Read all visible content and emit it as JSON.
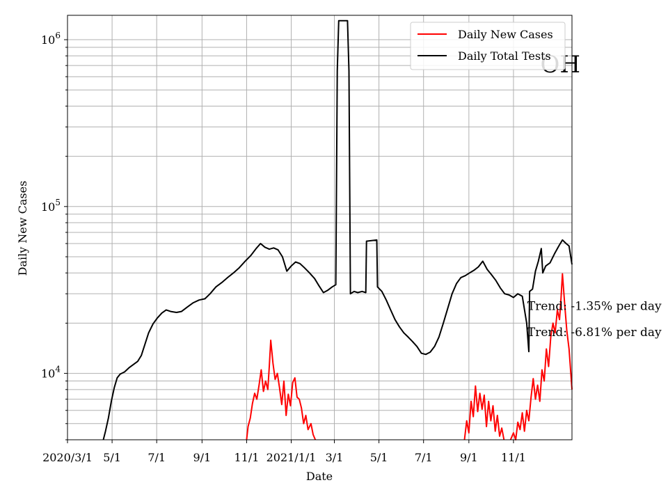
{
  "chart_data": {
    "type": "line",
    "title": "",
    "state_label": "OH",
    "xlabel": "Date",
    "ylabel": "Daily New Cases",
    "yscale": "log",
    "ylim": [
      4000,
      1400000
    ],
    "xlim": [
      "2020-03-01",
      "2022-01-20"
    ],
    "grid": true,
    "legend_position": "top-right",
    "x_ticks": [
      {
        "date": "2020-03-01",
        "label": "2020/3/1"
      },
      {
        "date": "2020-05-01",
        "label": "5/1"
      },
      {
        "date": "2020-07-01",
        "label": "7/1"
      },
      {
        "date": "2020-09-01",
        "label": "9/1"
      },
      {
        "date": "2020-11-01",
        "label": "11/1"
      },
      {
        "date": "2021-01-01",
        "label": "2021/1/1"
      },
      {
        "date": "2021-03-01",
        "label": "3/1"
      },
      {
        "date": "2021-05-01",
        "label": "5/1"
      },
      {
        "date": "2021-07-01",
        "label": "7/1"
      },
      {
        "date": "2021-09-01",
        "label": "9/1"
      },
      {
        "date": "2021-11-01",
        "label": "11/1"
      }
    ],
    "y_ticks": [
      {
        "value": 10000,
        "base": "10",
        "exp": "4"
      },
      {
        "value": 100000,
        "base": "10",
        "exp": "5"
      },
      {
        "value": 1000000,
        "base": "10",
        "exp": "6"
      }
    ],
    "annotations": [
      {
        "text": "Trend: -1.35% per day",
        "date": "2021-11-20",
        "value": 24000
      },
      {
        "text": "Trend: -6.81% per day",
        "date": "2021-11-20",
        "value": 16700
      }
    ],
    "series": [
      {
        "name": "Daily Total Tests",
        "color": "#000000",
        "points": [
          [
            "2020-04-19",
            4000
          ],
          [
            "2020-04-22",
            4500
          ],
          [
            "2020-04-26",
            5400
          ],
          [
            "2020-04-30",
            6800
          ],
          [
            "2020-05-04",
            8200
          ],
          [
            "2020-05-08",
            9400
          ],
          [
            "2020-05-12",
            9900
          ],
          [
            "2020-05-18",
            10200
          ],
          [
            "2020-05-24",
            10800
          ],
          [
            "2020-05-30",
            11300
          ],
          [
            "2020-06-05",
            11800
          ],
          [
            "2020-06-10",
            12800
          ],
          [
            "2020-06-15",
            15000
          ],
          [
            "2020-06-20",
            17500
          ],
          [
            "2020-06-26",
            19800
          ],
          [
            "2020-07-02",
            21500
          ],
          [
            "2020-07-08",
            23000
          ],
          [
            "2020-07-14",
            24000
          ],
          [
            "2020-07-20",
            23500
          ],
          [
            "2020-07-28",
            23200
          ],
          [
            "2020-08-04",
            23500
          ],
          [
            "2020-08-12",
            25000
          ],
          [
            "2020-08-20",
            26500
          ],
          [
            "2020-08-28",
            27500
          ],
          [
            "2020-09-05",
            28000
          ],
          [
            "2020-09-12",
            30000
          ],
          [
            "2020-09-20",
            33000
          ],
          [
            "2020-09-28",
            35000
          ],
          [
            "2020-10-06",
            37500
          ],
          [
            "2020-10-14",
            40000
          ],
          [
            "2020-10-22",
            43000
          ],
          [
            "2020-10-30",
            47000
          ],
          [
            "2020-11-07",
            51000
          ],
          [
            "2020-11-14",
            56000
          ],
          [
            "2020-11-20",
            60000
          ],
          [
            "2020-11-26",
            57000
          ],
          [
            "2020-12-02",
            55500
          ],
          [
            "2020-12-08",
            56500
          ],
          [
            "2020-12-14",
            55000
          ],
          [
            "2020-12-20",
            50000
          ],
          [
            "2020-12-26",
            41000
          ],
          [
            "2021-01-01",
            44000
          ],
          [
            "2021-01-07",
            46500
          ],
          [
            "2021-01-13",
            45500
          ],
          [
            "2021-01-19",
            43000
          ],
          [
            "2021-01-26",
            40000
          ],
          [
            "2021-02-02",
            37000
          ],
          [
            "2021-02-08",
            33500
          ],
          [
            "2021-02-14",
            30500
          ],
          [
            "2021-02-20",
            31500
          ],
          [
            "2021-02-26",
            33000
          ],
          [
            "2021-03-03",
            34000
          ],
          [
            "2021-03-05",
            650000
          ],
          [
            "2021-03-07",
            1300000
          ],
          [
            "2021-03-19",
            1300000
          ],
          [
            "2021-03-21",
            650000
          ],
          [
            "2021-03-23",
            30000
          ],
          [
            "2021-03-28",
            31000
          ],
          [
            "2021-04-02",
            30500
          ],
          [
            "2021-04-08",
            31000
          ],
          [
            "2021-04-13",
            30500
          ],
          [
            "2021-04-14",
            62000
          ],
          [
            "2021-04-28",
            63000
          ],
          [
            "2021-04-29",
            33000
          ],
          [
            "2021-05-05",
            31000
          ],
          [
            "2021-05-11",
            27500
          ],
          [
            "2021-05-17",
            24000
          ],
          [
            "2021-05-23",
            21000
          ],
          [
            "2021-05-29",
            19000
          ],
          [
            "2021-06-04",
            17500
          ],
          [
            "2021-06-10",
            16500
          ],
          [
            "2021-06-16",
            15500
          ],
          [
            "2021-06-22",
            14500
          ],
          [
            "2021-06-28",
            13200
          ],
          [
            "2021-07-04",
            13000
          ],
          [
            "2021-07-10",
            13400
          ],
          [
            "2021-07-16",
            14500
          ],
          [
            "2021-07-22",
            16500
          ],
          [
            "2021-07-28",
            20000
          ],
          [
            "2021-08-03",
            24500
          ],
          [
            "2021-08-09",
            30000
          ],
          [
            "2021-08-15",
            34500
          ],
          [
            "2021-08-21",
            37500
          ],
          [
            "2021-08-27",
            38500
          ],
          [
            "2021-09-02",
            40000
          ],
          [
            "2021-09-08",
            41500
          ],
          [
            "2021-09-14",
            43500
          ],
          [
            "2021-09-20",
            47000
          ],
          [
            "2021-09-26",
            42000
          ],
          [
            "2021-10-02",
            39000
          ],
          [
            "2021-10-08",
            36000
          ],
          [
            "2021-10-14",
            32500
          ],
          [
            "2021-10-20",
            30000
          ],
          [
            "2021-10-26",
            29500
          ],
          [
            "2021-11-01",
            28500
          ],
          [
            "2021-11-07",
            30000
          ],
          [
            "2021-11-13",
            29000
          ],
          [
            "2021-11-19",
            20000
          ],
          [
            "2021-11-22",
            13500
          ],
          [
            "2021-11-23",
            31000
          ],
          [
            "2021-11-27",
            32000
          ],
          [
            "2021-12-01",
            41000
          ],
          [
            "2021-12-05",
            47000
          ],
          [
            "2021-12-09",
            56000
          ],
          [
            "2021-12-11",
            40000
          ],
          [
            "2021-12-15",
            44000
          ],
          [
            "2021-12-21",
            46000
          ],
          [
            "2021-12-27",
            52000
          ],
          [
            "2022-01-02",
            58000
          ],
          [
            "2022-01-07",
            63000
          ],
          [
            "2022-01-12",
            60000
          ],
          [
            "2022-01-16",
            58000
          ],
          [
            "2022-01-20",
            45000
          ]
        ]
      },
      {
        "name": "Daily New Cases",
        "color": "#ff0000",
        "points": [
          [
            "2020-11-01",
            4000
          ],
          [
            "2020-11-03",
            4800
          ],
          [
            "2020-11-06",
            5400
          ],
          [
            "2020-11-09",
            6600
          ],
          [
            "2020-11-12",
            7600
          ],
          [
            "2020-11-15",
            7000
          ],
          [
            "2020-11-18",
            8500
          ],
          [
            "2020-11-21",
            10500
          ],
          [
            "2020-11-24",
            7800
          ],
          [
            "2020-11-27",
            9000
          ],
          [
            "2020-11-30",
            8000
          ],
          [
            "2020-12-02",
            11000
          ],
          [
            "2020-12-04",
            15800
          ],
          [
            "2020-12-07",
            11500
          ],
          [
            "2020-12-10",
            9200
          ],
          [
            "2020-12-13",
            10000
          ],
          [
            "2020-12-16",
            8200
          ],
          [
            "2020-12-19",
            6500
          ],
          [
            "2020-12-22",
            9000
          ],
          [
            "2020-12-25",
            5600
          ],
          [
            "2020-12-28",
            7500
          ],
          [
            "2020-12-31",
            6400
          ],
          [
            "2021-01-03",
            8800
          ],
          [
            "2021-01-06",
            9400
          ],
          [
            "2021-01-09",
            7200
          ],
          [
            "2021-01-12",
            7000
          ],
          [
            "2021-01-15",
            6200
          ],
          [
            "2021-01-18",
            5000
          ],
          [
            "2021-01-21",
            5600
          ],
          [
            "2021-01-24",
            4600
          ],
          [
            "2021-01-28",
            5000
          ],
          [
            "2021-01-31",
            4300
          ],
          [
            "2021-02-03",
            4000
          ],
          null,
          [
            "2021-08-26",
            4000
          ],
          [
            "2021-08-29",
            5200
          ],
          [
            "2021-09-01",
            4400
          ],
          [
            "2021-09-04",
            6800
          ],
          [
            "2021-09-07",
            5500
          ],
          [
            "2021-09-10",
            8400
          ],
          [
            "2021-09-13",
            5900
          ],
          [
            "2021-09-16",
            7600
          ],
          [
            "2021-09-19",
            6100
          ],
          [
            "2021-09-22",
            7400
          ],
          [
            "2021-09-25",
            4800
          ],
          [
            "2021-09-28",
            6800
          ],
          [
            "2021-10-01",
            5200
          ],
          [
            "2021-10-04",
            6400
          ],
          [
            "2021-10-07",
            4500
          ],
          [
            "2021-10-10",
            5600
          ],
          [
            "2021-10-13",
            4200
          ],
          [
            "2021-10-16",
            4700
          ],
          [
            "2021-10-19",
            4000
          ],
          null,
          [
            "2021-10-28",
            4000
          ],
          [
            "2021-11-01",
            4400
          ],
          [
            "2021-11-04",
            4000
          ],
          [
            "2021-11-07",
            5100
          ],
          [
            "2021-11-10",
            4600
          ],
          [
            "2021-11-13",
            5800
          ],
          [
            "2021-11-16",
            4500
          ],
          [
            "2021-11-19",
            6000
          ],
          [
            "2021-11-22",
            5200
          ],
          [
            "2021-11-25",
            7200
          ],
          [
            "2021-11-28",
            9300
          ],
          [
            "2021-12-01",
            7000
          ],
          [
            "2021-12-04",
            8500
          ],
          [
            "2021-12-07",
            6800
          ],
          [
            "2021-12-10",
            10500
          ],
          [
            "2021-12-13",
            9000
          ],
          [
            "2021-12-16",
            14000
          ],
          [
            "2021-12-19",
            11000
          ],
          [
            "2021-12-22",
            16500
          ],
          [
            "2021-12-25",
            20000
          ],
          [
            "2021-12-28",
            17500
          ],
          [
            "2021-12-31",
            24000
          ],
          [
            "2022-01-03",
            21000
          ],
          [
            "2022-01-05",
            28000
          ],
          [
            "2022-01-07",
            39500
          ],
          [
            "2022-01-10",
            26000
          ],
          [
            "2022-01-13",
            18000
          ],
          [
            "2022-01-16",
            14000
          ],
          [
            "2022-01-20",
            8000
          ]
        ]
      }
    ]
  }
}
